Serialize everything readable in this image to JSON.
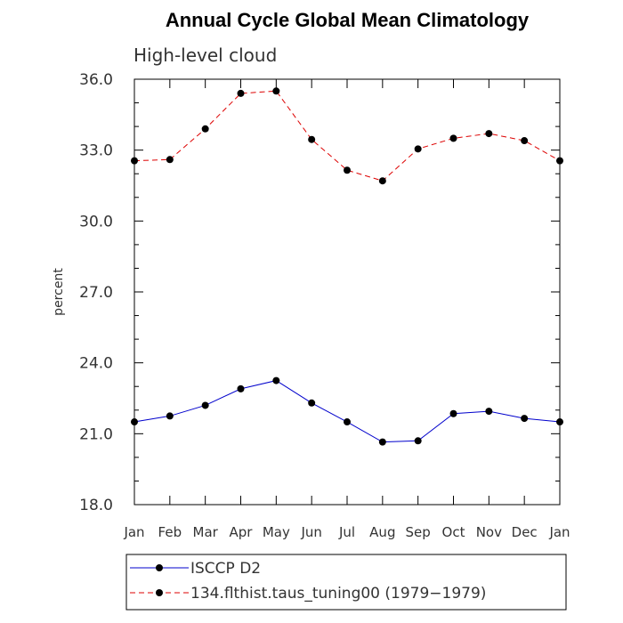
{
  "chart_data": {
    "type": "line",
    "title": "Annual Cycle Global Mean Climatology",
    "subtitle": "High-level cloud",
    "ylabel": "percent",
    "xlabel": "",
    "categories": [
      "Jan",
      "Feb",
      "Mar",
      "Apr",
      "May",
      "Jun",
      "Jul",
      "Aug",
      "Sep",
      "Oct",
      "Nov",
      "Dec",
      "Jan"
    ],
    "ylim": [
      18.0,
      36.0
    ],
    "yticks": [
      "18.0",
      "21.0",
      "24.0",
      "27.0",
      "30.0",
      "33.0",
      "36.0"
    ],
    "grid": false,
    "legend_position": "bottom",
    "series": [
      {
        "name": "ISCCP D2",
        "color": "#0000cc",
        "style": "solid",
        "marker": "filled-circle",
        "values": [
          21.5,
          21.75,
          22.2,
          22.9,
          23.25,
          22.3,
          21.5,
          20.65,
          20.7,
          21.85,
          21.95,
          21.65,
          21.5
        ]
      },
      {
        "name": "134.flthist.taus_tuning00 (1979−1979)",
        "color": "#dd0000",
        "style": "dashed",
        "marker": "filled-circle",
        "values": [
          32.55,
          32.6,
          33.9,
          35.4,
          35.5,
          33.45,
          32.15,
          31.7,
          33.05,
          33.5,
          33.7,
          33.4,
          32.55
        ]
      }
    ]
  }
}
